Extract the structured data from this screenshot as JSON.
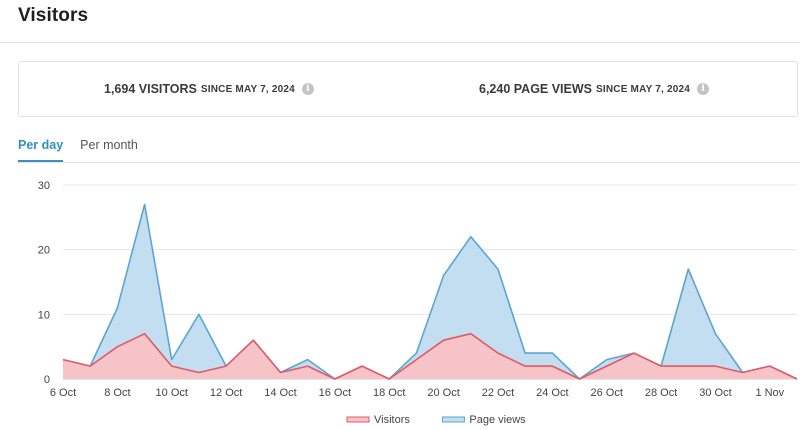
{
  "header": {
    "title": "Visitors"
  },
  "stats": {
    "visitors": {
      "value": "1,694 VISITORS",
      "since": "SINCE MAY 7, 2024",
      "info_icon": "info-icon"
    },
    "page_views": {
      "value": "6,240 PAGE VIEWS",
      "since": "SINCE MAY 7, 2024",
      "info_icon": "info-icon"
    }
  },
  "tabs": [
    {
      "label": "Per day",
      "active": true
    },
    {
      "label": "Per month",
      "active": false
    }
  ],
  "colors": {
    "visitors_line": "#e05a66",
    "visitors_fill": "#f6c4c8",
    "pageviews_line": "#5aa6d0",
    "pageviews_fill": "#c3def1",
    "accent": "#2f8fbd"
  },
  "chart_data": {
    "type": "area",
    "title": "",
    "xlabel": "",
    "ylabel": "",
    "ylim": [
      0,
      30
    ],
    "yticks": [
      0,
      10,
      20,
      30
    ],
    "categories": [
      "6 Oct",
      "7 Oct",
      "8 Oct",
      "9 Oct",
      "10 Oct",
      "11 Oct",
      "12 Oct",
      "13 Oct",
      "14 Oct",
      "15 Oct",
      "16 Oct",
      "17 Oct",
      "18 Oct",
      "19 Oct",
      "20 Oct",
      "21 Oct",
      "22 Oct",
      "23 Oct",
      "24 Oct",
      "25 Oct",
      "26 Oct",
      "27 Oct",
      "28 Oct",
      "29 Oct",
      "30 Oct",
      "31 Oct",
      "1 Nov",
      "2 Nov"
    ],
    "x_tick_labels": [
      "6 Oct",
      "8 Oct",
      "10 Oct",
      "12 Oct",
      "14 Oct",
      "16 Oct",
      "18 Oct",
      "20 Oct",
      "22 Oct",
      "24 Oct",
      "26 Oct",
      "28 Oct",
      "30 Oct",
      "1 Nov"
    ],
    "series": [
      {
        "name": "Page views",
        "values": [
          3,
          2,
          11,
          27,
          3,
          10,
          2,
          6,
          1,
          3,
          0,
          2,
          0,
          4,
          16,
          22,
          17,
          4,
          4,
          0,
          3,
          4,
          2,
          17,
          7,
          1,
          2,
          0
        ]
      },
      {
        "name": "Visitors",
        "values": [
          3,
          2,
          5,
          7,
          2,
          1,
          2,
          6,
          1,
          2,
          0,
          2,
          0,
          3,
          6,
          7,
          4,
          2,
          2,
          0,
          2,
          4,
          2,
          2,
          2,
          1,
          2,
          0
        ]
      }
    ],
    "legend": [
      "Visitors",
      "Page views"
    ],
    "legend_position": "bottom-center",
    "grid": true
  }
}
